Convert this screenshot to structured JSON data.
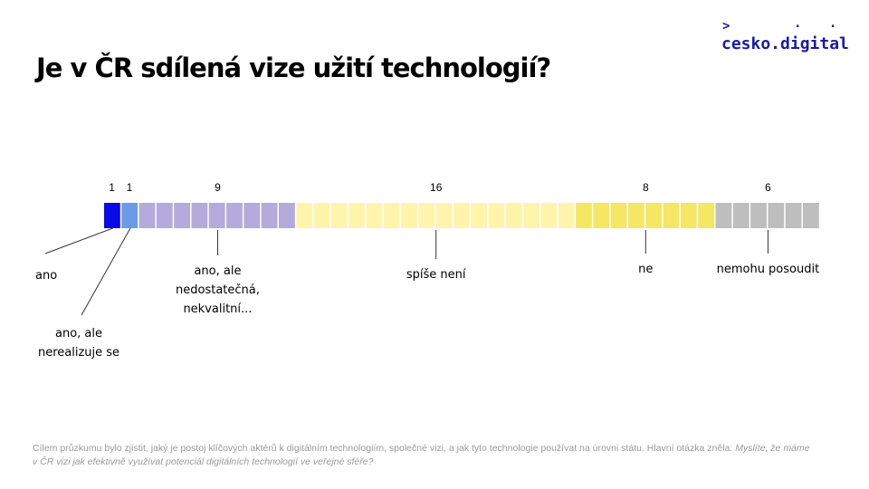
{
  "logo": {
    "text": "cesko.digital",
    "chevron": ">",
    "dots": ". ."
  },
  "title": "Je v ČR sdílená vize užití technologií?",
  "footnote": {
    "text": "Cílem průzkumu bylo zjistit, jaký je postoj klíčových aktérů k digitálním technologiím, společné vizi, a jak tyto technologie používat na úrovni státu. Hlavní otázka zněla: ",
    "question": "Myslíte, že máme v ČR vizi jak efektivně využívat potenciál digitálních technologií ve veřejné sféře?"
  },
  "chart_data": {
    "type": "bar",
    "orientation": "horizontal-stacked-unit",
    "categories": [
      "ano",
      "ano, ale nerealizuje se",
      "ano, ale nedostatečná, nekvalitní...",
      "spíše není",
      "ne",
      "nemohu posoudit"
    ],
    "values": [
      1,
      1,
      9,
      16,
      8,
      6
    ],
    "labels": [
      [
        "ano"
      ],
      [
        "ano, ale",
        "nerealizuje se"
      ],
      [
        "ano, ale",
        "nedostatečná,",
        "nekvalitní..."
      ],
      [
        "spíše není"
      ],
      [
        "ne"
      ],
      [
        "nemohu posoudit"
      ]
    ],
    "colors": [
      "#0a0ae6",
      "#6b9be6",
      "#b4aadc",
      "#fff5aa",
      "#f5e664",
      "#bebebe"
    ],
    "cell_color_variants": {
      "3": {
        "from_index": 0,
        "count": 16,
        "accent_from": 16
      },
      "4": {
        "accent": "#f3e25a"
      }
    },
    "legend": "none",
    "grid": false
  }
}
